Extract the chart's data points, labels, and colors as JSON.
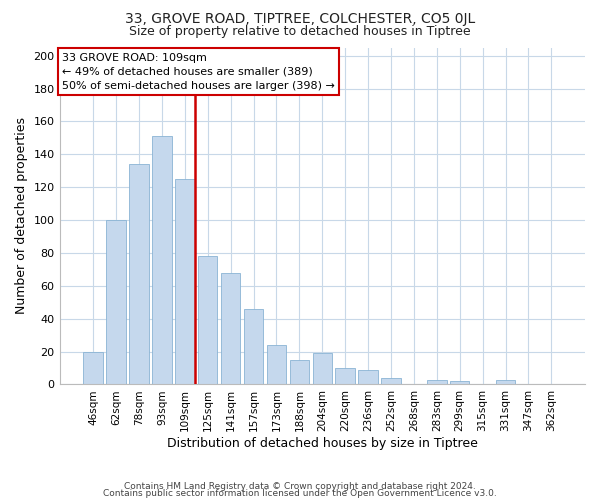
{
  "title": "33, GROVE ROAD, TIPTREE, COLCHESTER, CO5 0JL",
  "subtitle": "Size of property relative to detached houses in Tiptree",
  "xlabel": "Distribution of detached houses by size in Tiptree",
  "ylabel": "Number of detached properties",
  "bar_labels": [
    "46sqm",
    "62sqm",
    "78sqm",
    "93sqm",
    "109sqm",
    "125sqm",
    "141sqm",
    "157sqm",
    "173sqm",
    "188sqm",
    "204sqm",
    "220sqm",
    "236sqm",
    "252sqm",
    "268sqm",
    "283sqm",
    "299sqm",
    "315sqm",
    "331sqm",
    "347sqm",
    "362sqm"
  ],
  "bar_values": [
    20,
    100,
    134,
    151,
    125,
    78,
    68,
    46,
    24,
    15,
    19,
    10,
    9,
    4,
    0,
    3,
    2,
    0,
    3,
    0,
    0
  ],
  "bar_color": "#c5d8ed",
  "bar_edge_color": "#8ab4d4",
  "highlight_index": 4,
  "highlight_line_color": "#cc0000",
  "ylim": [
    0,
    205
  ],
  "yticks": [
    0,
    20,
    40,
    60,
    80,
    100,
    120,
    140,
    160,
    180,
    200
  ],
  "annotation_title": "33 GROVE ROAD: 109sqm",
  "annotation_line1": "← 49% of detached houses are smaller (389)",
  "annotation_line2": "50% of semi-detached houses are larger (398) →",
  "annotation_box_color": "#ffffff",
  "annotation_box_edge": "#cc0000",
  "footer1": "Contains HM Land Registry data © Crown copyright and database right 2024.",
  "footer2": "Contains public sector information licensed under the Open Government Licence v3.0.",
  "background_color": "#ffffff",
  "grid_color": "#c8d8e8",
  "title_fontsize": 10,
  "subtitle_fontsize": 9
}
